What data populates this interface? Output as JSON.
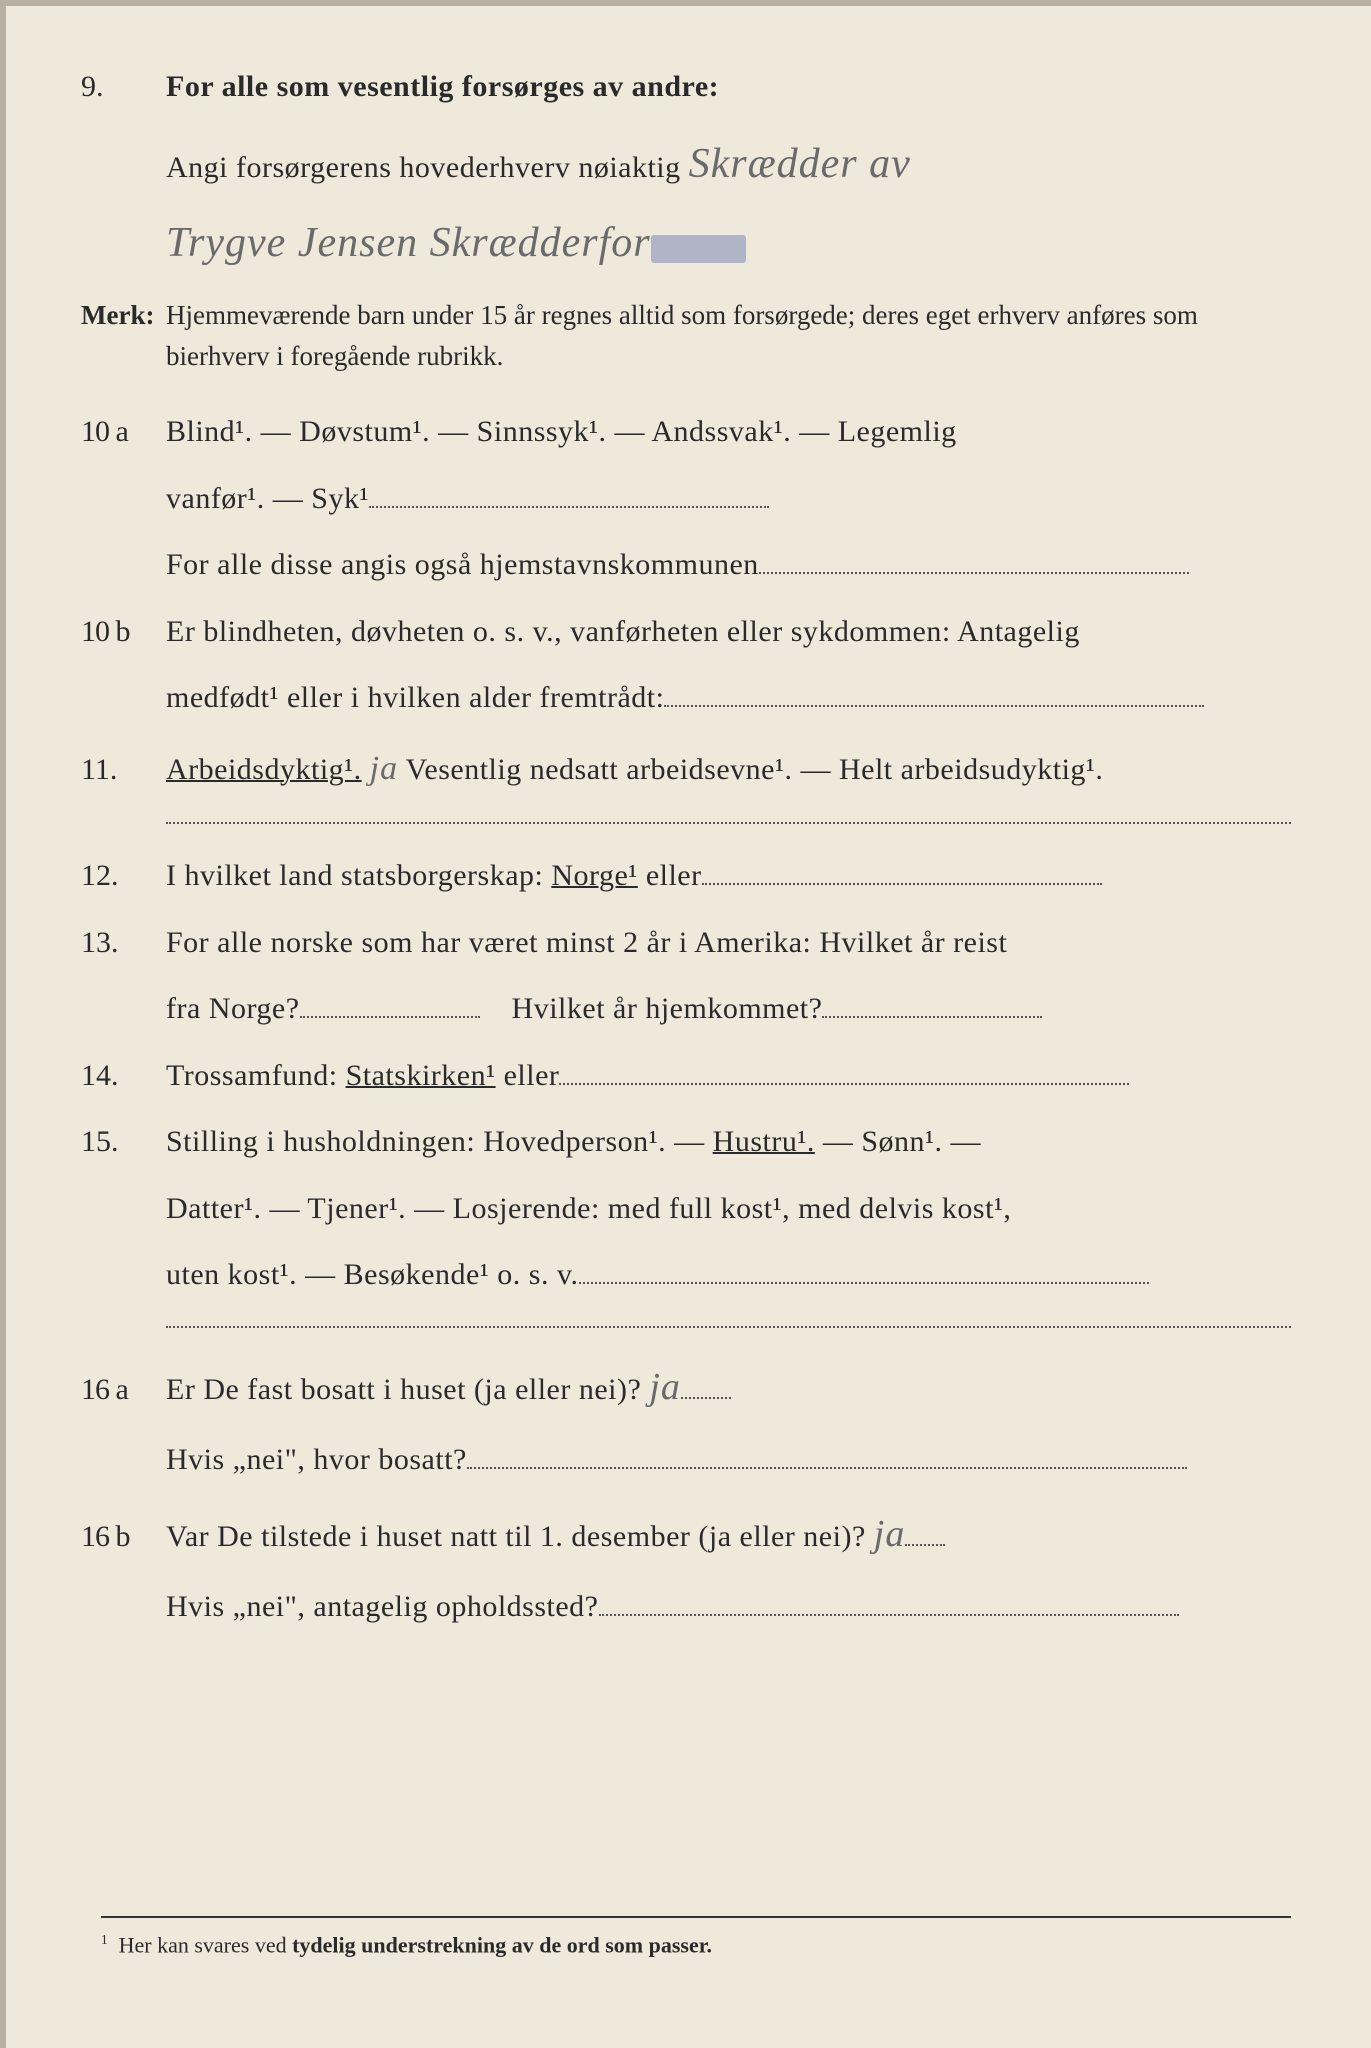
{
  "q9": {
    "num": "9.",
    "heading": "For alle som vesentlig forsørges av andre:",
    "line1_label": "Angi forsørgerens hovederhverv nøiaktig",
    "hand1": "Skrædder av",
    "hand2": "Trygve Jensen Skrædderfor"
  },
  "merk": {
    "label": "Merk:",
    "text": "Hjemmeværende barn under 15 år regnes alltid som forsørgede; deres eget erhverv anføres som bierhverv i foregående rubrikk."
  },
  "q10a": {
    "num": "10 a",
    "line1": "Blind¹.  —  Døvstum¹.  —  Sinnssyk¹.  —  Andssvak¹.  —  Legemlig",
    "line2_pre": "vanfør¹.  —  Syk¹",
    "line3": "For alle disse angis også hjemstavnskommunen"
  },
  "q10b": {
    "num": "10 b",
    "line1": "Er blindheten, døvheten o. s. v., vanførheten eller sykdommen:  Antagelig",
    "line2": "medfødt¹ eller i hvilken alder fremtrådt:"
  },
  "q11": {
    "num": "11.",
    "opt1": "Arbeidsdyktig¹.",
    "hand": "ja",
    "opt2": "Vesentlig nedsatt arbeidsevne¹. — Helt arbeidsudyktig¹."
  },
  "q12": {
    "num": "12.",
    "text_pre": "I hvilket land statsborgerskap:  ",
    "opt": "Norge¹",
    "text_post": " eller"
  },
  "q13": {
    "num": "13.",
    "line1": "For alle norske som har været minst 2 år i Amerika:  Hvilket år reist",
    "line2a": "fra Norge?",
    "line2b": "Hvilket år hjemkommet?"
  },
  "q14": {
    "num": "14.",
    "text_pre": "Trossamfund:   ",
    "opt": "Statskirken¹",
    "text_post": " eller"
  },
  "q15": {
    "num": "15.",
    "line1_pre": "Stilling i husholdningen:  Hovedperson¹.  —  ",
    "opt_hustru": "Hustru¹.",
    "line1_post": "  —  Sønn¹.  —",
    "line2": "Datter¹.  —  Tjener¹.  —  Losjerende:  med full kost¹, med delvis kost¹,",
    "line3": "uten kost¹.  —  Besøkende¹ o. s. v."
  },
  "q16a": {
    "num": "16 a",
    "line1": "Er De fast bosatt i huset (ja eller nei)?",
    "hand": "ja",
    "line2": "Hvis „nei\", hvor bosatt?"
  },
  "q16b": {
    "num": "16 b",
    "line1": "Var De tilstede i huset natt til 1. desember (ja eller nei)?",
    "hand": "ja",
    "line2": "Hvis „nei\", antagelig opholdssted?"
  },
  "footnote": {
    "marker": "1",
    "text_pre": "Her kan svares ved ",
    "text_bold": "tydelig understrekning av de ord som passer."
  }
}
